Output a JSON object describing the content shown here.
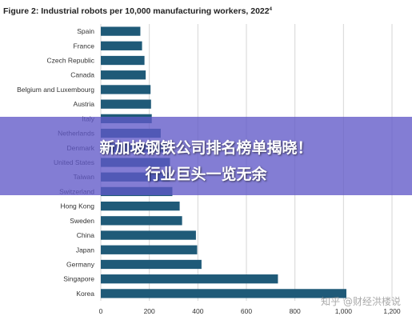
{
  "chart_data": {
    "type": "bar",
    "orientation": "horizontal",
    "title": "Figure 2: Industrial robots per 10,000 manufacturing workers, 2022",
    "title_footnote": "4",
    "categories": [
      "Spain",
      "France",
      "Czech Republic",
      "Canada",
      "Belgium and Luxembourg",
      "Austria",
      "Italy",
      "Netherlands",
      "Denmark",
      "United States",
      "Taiwan",
      "Switzerland",
      "Hong Kong",
      "Sweden",
      "China",
      "Japan",
      "Germany",
      "Singapore",
      "Korea"
    ],
    "values": [
      163,
      170,
      180,
      185,
      205,
      207,
      210,
      247,
      275,
      285,
      285,
      295,
      325,
      335,
      392,
      397,
      415,
      730,
      1012
    ],
    "xlim": [
      0,
      1200
    ],
    "xticks": [
      "0",
      "200",
      "400",
      "600",
      "800",
      "1,000",
      "1,200"
    ],
    "grid": true,
    "bar_color": "#1f5a78"
  },
  "overlay": {
    "line1": "新加坡钢铁公司排名榜单揭晓！",
    "line2": "行业巨头一览无余",
    "color": "#6058c8"
  },
  "watermark": "知乎 @财经洪楼说"
}
